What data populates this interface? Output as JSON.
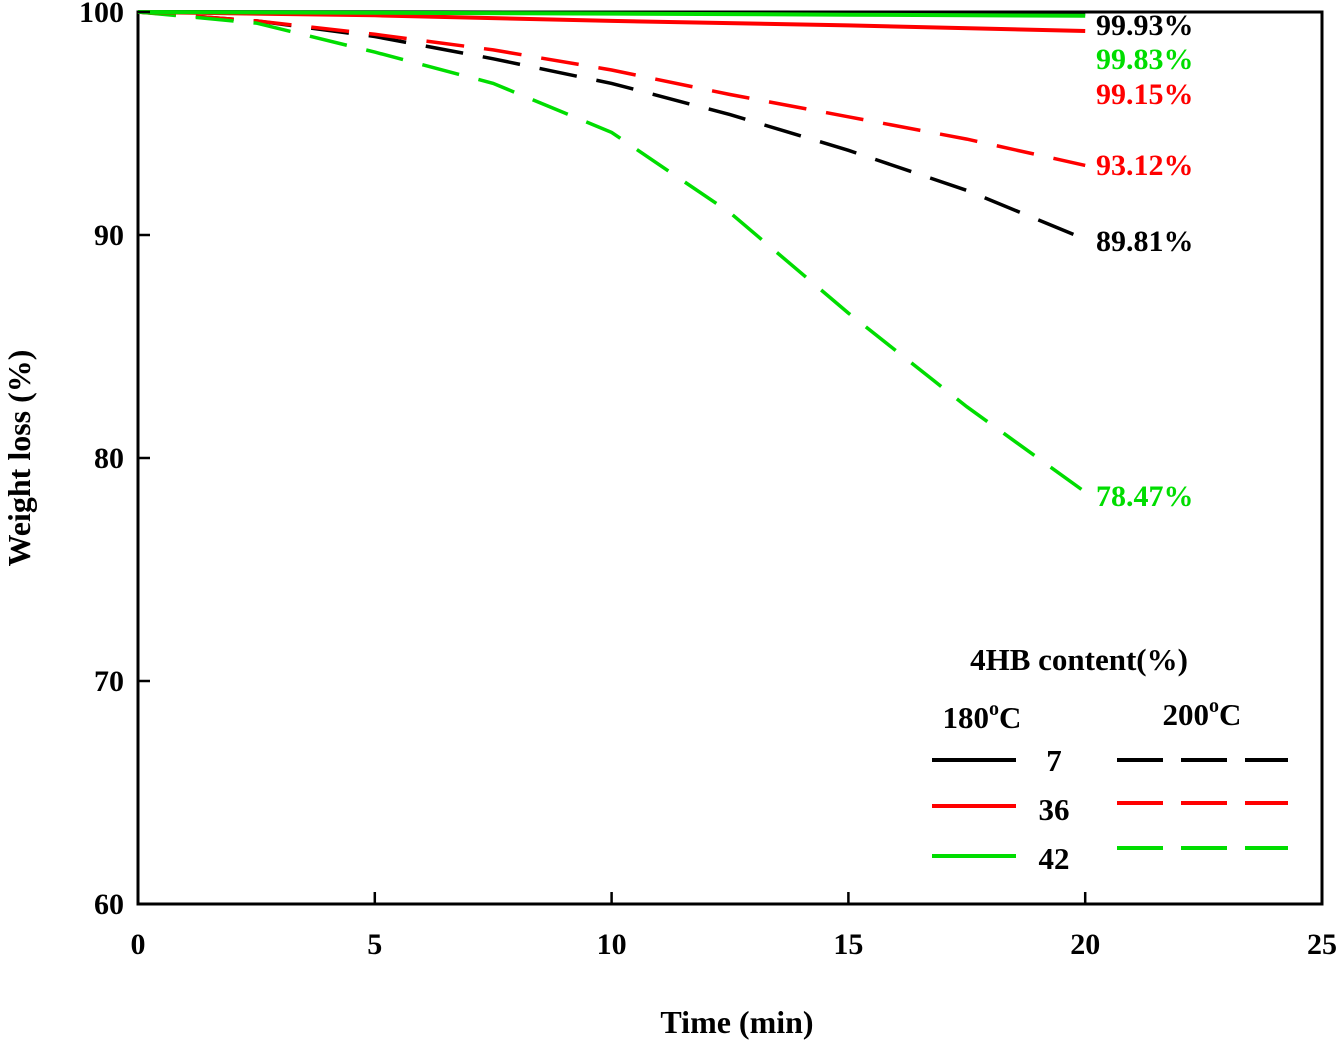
{
  "chart_data": {
    "type": "line",
    "xlabel": "Time (min)",
    "ylabel": "Weight loss (%)",
    "xlim": [
      0,
      25
    ],
    "ylim": [
      60,
      100
    ],
    "x_ticks": [
      0,
      5,
      10,
      15,
      20,
      25
    ],
    "y_ticks": [
      60,
      70,
      80,
      90,
      100
    ],
    "x_tick_labels": [
      "0",
      "5",
      "10",
      "15",
      "20",
      "25"
    ],
    "y_tick_labels": [
      "60",
      "70",
      "80",
      "90",
      "100"
    ],
    "grid": false,
    "series": [
      {
        "group": "180oC",
        "content": "7",
        "style": "solid",
        "color": "#000000",
        "x": [
          0,
          5,
          10,
          15,
          20
        ],
        "y": [
          100,
          99.99,
          99.97,
          99.95,
          99.93
        ]
      },
      {
        "group": "180oC",
        "content": "36",
        "style": "solid",
        "color": "#ff0000",
        "x": [
          0,
          5,
          10,
          15,
          20
        ],
        "y": [
          100,
          99.85,
          99.6,
          99.4,
          99.15
        ]
      },
      {
        "group": "180oC",
        "content": "42",
        "style": "solid",
        "color": "#00dd00",
        "x": [
          0,
          5,
          10,
          15,
          20
        ],
        "y": [
          100,
          99.97,
          99.93,
          99.88,
          99.83
        ]
      },
      {
        "group": "200oC",
        "content": "7",
        "style": "dashed",
        "color": "#000000",
        "x": [
          0,
          2.5,
          5,
          7.5,
          10,
          12.5,
          15,
          17.5,
          20
        ],
        "y": [
          100,
          99.6,
          98.9,
          97.9,
          96.8,
          95.4,
          93.8,
          92.0,
          89.81
        ]
      },
      {
        "group": "200oC",
        "content": "36",
        "style": "dashed",
        "color": "#ff0000",
        "x": [
          0,
          2.5,
          5,
          7.5,
          10,
          12.5,
          15,
          17.5,
          20
        ],
        "y": [
          100,
          99.6,
          99.0,
          98.3,
          97.4,
          96.3,
          95.3,
          94.3,
          93.12
        ]
      },
      {
        "group": "200oC",
        "content": "42",
        "style": "dashed",
        "color": "#00dd00",
        "x": [
          0,
          2.5,
          5,
          7.5,
          10,
          12.5,
          15,
          17.5,
          20
        ],
        "y": [
          100,
          99.5,
          98.2,
          96.8,
          94.6,
          91.0,
          86.5,
          82.3,
          78.47
        ]
      }
    ],
    "annotations": [
      {
        "text": "99.93%",
        "color": "#000000"
      },
      {
        "text": "99.83%",
        "color": "#00dd00"
      },
      {
        "text": "99.15%",
        "color": "#ff0000"
      },
      {
        "text": "93.12%",
        "color": "#ff0000"
      },
      {
        "text": "89.81%",
        "color": "#000000"
      },
      {
        "text": "78.47%",
        "color": "#00dd00"
      }
    ],
    "legend": {
      "title": "4HB content(%)",
      "placement": "bottom-right",
      "col1_base": "180",
      "col1_sup": "o",
      "col1_unit": "C",
      "col2_base": "200",
      "col2_sup": "o",
      "col2_unit": "C",
      "rows": [
        "7",
        "36",
        "42"
      ]
    }
  }
}
